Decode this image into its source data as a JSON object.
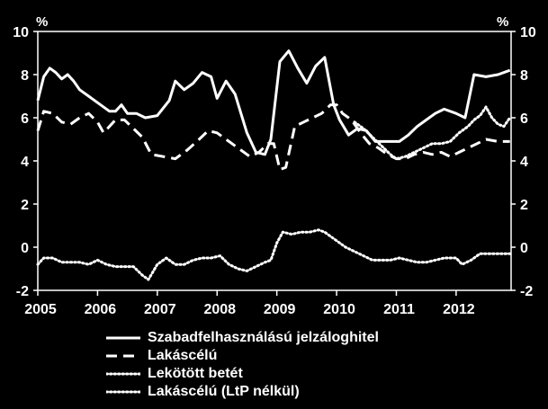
{
  "chart_data": {
    "type": "line",
    "title": "",
    "xlabel": "",
    "ylabel_left": "%",
    "ylabel_right": "%",
    "xlim": [
      2005.0,
      2012.92
    ],
    "ylim": [
      -2,
      10
    ],
    "yticks": [
      "10",
      "8",
      "6",
      "4",
      "2",
      "0",
      "-2"
    ],
    "xticks": [
      "2005",
      "2006",
      "2007",
      "2008",
      "2009",
      "2010",
      "2011",
      "2012"
    ],
    "legend_position": "bottom",
    "grid": false,
    "series": [
      {
        "name": "Szabadfelhasználású jelzáloghitel",
        "style": "solid",
        "color": "#ffffff",
        "x": [
          2005.0,
          2005.1,
          2005.2,
          2005.3,
          2005.4,
          2005.5,
          2005.6,
          2005.7,
          2005.85,
          2006.0,
          2006.2,
          2006.3,
          2006.4,
          2006.5,
          2006.65,
          2006.8,
          2007.0,
          2007.2,
          2007.3,
          2007.45,
          2007.6,
          2007.75,
          2007.9,
          2008.0,
          2008.15,
          2008.3,
          2008.5,
          2008.65,
          2008.8,
          2008.9,
          2009.05,
          2009.2,
          2009.35,
          2009.5,
          2009.65,
          2009.8,
          2009.95,
          2010.05,
          2010.2,
          2010.35,
          2010.5,
          2010.65,
          2010.8,
          2010.95,
          2011.05,
          2011.2,
          2011.35,
          2011.5,
          2011.65,
          2011.8,
          2012.0,
          2012.15,
          2012.3,
          2012.5,
          2012.7,
          2012.9
        ],
        "values": [
          6.8,
          7.9,
          8.3,
          8.1,
          7.8,
          8.0,
          7.7,
          7.3,
          7.0,
          6.7,
          6.3,
          6.3,
          6.6,
          6.2,
          6.2,
          6.0,
          6.1,
          6.8,
          7.7,
          7.3,
          7.6,
          8.1,
          7.9,
          6.9,
          7.7,
          7.1,
          5.3,
          4.4,
          4.3,
          5.0,
          8.6,
          9.1,
          8.3,
          7.6,
          8.4,
          8.8,
          6.6,
          5.9,
          5.2,
          5.5,
          5.4,
          4.9,
          4.9,
          4.9,
          4.9,
          5.2,
          5.6,
          5.9,
          6.2,
          6.4,
          6.2,
          6.0,
          8.0,
          7.9,
          8.0,
          8.2
        ]
      },
      {
        "name": "Lakáscélú",
        "style": "dashed",
        "color": "#ffffff",
        "x": [
          2005.0,
          2005.1,
          2005.25,
          2005.4,
          2005.55,
          2005.7,
          2005.85,
          2006.0,
          2006.1,
          2006.3,
          2006.45,
          2006.6,
          2006.75,
          2006.9,
          2007.1,
          2007.3,
          2007.5,
          2007.7,
          2007.85,
          2008.0,
          2008.2,
          2008.4,
          2008.55,
          2008.7,
          2008.85,
          2008.95,
          2009.05,
          2009.15,
          2009.3,
          2009.45,
          2009.6,
          2009.75,
          2009.9,
          2010.0,
          2010.1,
          2010.25,
          2010.4,
          2010.55,
          2010.7,
          2010.85,
          2011.0,
          2011.15,
          2011.3,
          2011.45,
          2011.6,
          2011.75,
          2011.9,
          2012.05,
          2012.2,
          2012.35,
          2012.5,
          2012.7,
          2012.9
        ],
        "values": [
          5.4,
          6.3,
          6.2,
          5.8,
          5.7,
          6.0,
          6.2,
          5.8,
          5.3,
          5.9,
          5.9,
          5.5,
          5.1,
          4.3,
          4.2,
          4.1,
          4.5,
          5.0,
          5.4,
          5.3,
          4.9,
          4.5,
          4.2,
          4.4,
          4.8,
          4.8,
          3.6,
          3.7,
          5.6,
          5.8,
          6.0,
          6.2,
          6.6,
          6.6,
          6.2,
          5.9,
          5.3,
          4.8,
          4.6,
          4.3,
          4.1,
          4.1,
          4.3,
          4.4,
          4.3,
          4.4,
          4.2,
          4.4,
          4.6,
          4.8,
          5.0,
          4.9,
          4.9
        ]
      },
      {
        "name": "Lekötött betét",
        "style": "dotted",
        "color": "#ffffff",
        "x": [
          2010.3,
          2010.45,
          2010.6,
          2010.75,
          2010.9,
          2011.0,
          2011.15,
          2011.3,
          2011.45,
          2011.6,
          2011.75,
          2011.9,
          2012.05,
          2012.2,
          2012.3,
          2012.4,
          2012.5,
          2012.6,
          2012.7,
          2012.8,
          2012.9
        ],
        "values": [
          5.8,
          5.5,
          5.1,
          4.7,
          4.3,
          4.1,
          4.2,
          4.4,
          4.6,
          4.8,
          4.8,
          4.9,
          5.3,
          5.6,
          5.9,
          6.1,
          6.5,
          6.0,
          5.7,
          5.6,
          6.0
        ]
      },
      {
        "name": "Lakáscélú (LtP nélkül)",
        "style": "dotted",
        "color": "#ffffff",
        "x": [
          2005.0,
          2005.1,
          2005.25,
          2005.4,
          2005.55,
          2005.7,
          2005.85,
          2006.0,
          2006.15,
          2006.3,
          2006.45,
          2006.6,
          2006.75,
          2006.85,
          2007.0,
          2007.15,
          2007.3,
          2007.45,
          2007.6,
          2007.75,
          2007.9,
          2008.05,
          2008.2,
          2008.35,
          2008.5,
          2008.65,
          2008.8,
          2008.9,
          2009.0,
          2009.1,
          2009.25,
          2009.4,
          2009.55,
          2009.7,
          2009.8,
          2009.9,
          2010.0,
          2010.15,
          2010.3,
          2010.45,
          2010.6,
          2010.75,
          2010.9,
          2011.05,
          2011.2,
          2011.35,
          2011.5,
          2011.65,
          2011.8,
          2012.0,
          2012.1,
          2012.25,
          2012.4,
          2012.55,
          2012.7,
          2012.9
        ],
        "values": [
          -0.8,
          -0.5,
          -0.5,
          -0.7,
          -0.7,
          -0.7,
          -0.8,
          -0.6,
          -0.8,
          -0.9,
          -0.9,
          -0.9,
          -1.3,
          -1.5,
          -0.8,
          -0.5,
          -0.8,
          -0.8,
          -0.6,
          -0.5,
          -0.5,
          -0.4,
          -0.8,
          -1.0,
          -1.1,
          -0.9,
          -0.7,
          -0.6,
          0.2,
          0.7,
          0.6,
          0.7,
          0.7,
          0.8,
          0.7,
          0.5,
          0.3,
          0.0,
          -0.2,
          -0.4,
          -0.6,
          -0.6,
          -0.6,
          -0.5,
          -0.6,
          -0.7,
          -0.7,
          -0.6,
          -0.5,
          -0.5,
          -0.8,
          -0.6,
          -0.3,
          -0.3,
          -0.3,
          -0.3
        ]
      }
    ]
  }
}
